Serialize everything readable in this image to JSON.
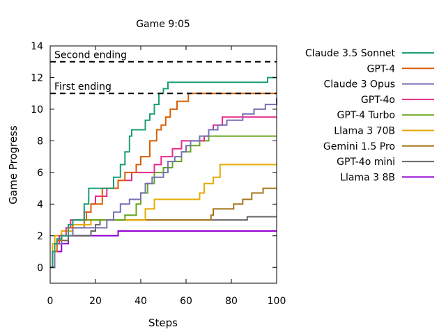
{
  "chart_data": {
    "type": "line",
    "title": "Game 9:05",
    "xlabel": "Steps",
    "ylabel": "Game Progress",
    "xlim": [
      0,
      100
    ],
    "ylim": [
      -1,
      14
    ],
    "xticks": [
      0,
      20,
      40,
      60,
      80,
      100
    ],
    "yticks": [
      0,
      2,
      4,
      6,
      8,
      10,
      12,
      14
    ],
    "legend_position": "outside-right",
    "reference_lines": [
      {
        "label": "Second ending",
        "y": 13
      },
      {
        "label": "First ending",
        "y": 11
      }
    ],
    "series": [
      {
        "name": "Claude 3.5 Sonnet",
        "color": "#1a9e77",
        "points": [
          [
            0,
            0
          ],
          [
            1,
            1
          ],
          [
            2,
            1.5
          ],
          [
            3,
            1.8
          ],
          [
            5,
            2
          ],
          [
            8,
            2.7
          ],
          [
            10,
            3
          ],
          [
            13,
            3
          ],
          [
            15,
            4
          ],
          [
            17,
            5
          ],
          [
            27,
            5
          ],
          [
            28,
            5.7
          ],
          [
            31,
            6.5
          ],
          [
            33,
            7.3
          ],
          [
            35,
            8.3
          ],
          [
            36,
            8.7
          ],
          [
            40,
            8.7
          ],
          [
            42,
            9.3
          ],
          [
            44,
            9.7
          ],
          [
            46,
            10.3
          ],
          [
            48,
            11
          ],
          [
            50,
            11.3
          ],
          [
            52,
            11.7
          ],
          [
            95,
            11.7
          ],
          [
            96,
            12
          ],
          [
            100,
            12
          ]
        ]
      },
      {
        "name": "GPT-4",
        "color": "#d95f02",
        "points": [
          [
            0,
            0
          ],
          [
            1,
            1
          ],
          [
            3,
            1.7
          ],
          [
            5,
            2
          ],
          [
            8,
            2.5
          ],
          [
            10,
            3
          ],
          [
            15,
            3
          ],
          [
            16,
            3.5
          ],
          [
            18,
            4
          ],
          [
            20,
            4
          ],
          [
            23,
            5
          ],
          [
            30,
            5.5
          ],
          [
            33,
            6
          ],
          [
            38,
            6.5
          ],
          [
            40,
            7
          ],
          [
            43,
            7
          ],
          [
            44,
            8
          ],
          [
            47,
            8.7
          ],
          [
            49,
            9
          ],
          [
            51,
            9.5
          ],
          [
            53,
            10
          ],
          [
            56,
            10.5
          ],
          [
            60,
            10.5
          ],
          [
            61,
            11
          ],
          [
            100,
            11
          ]
        ]
      },
      {
        "name": "Claude 3 Opus",
        "color": "#7570b3",
        "points": [
          [
            0,
            0
          ],
          [
            2,
            1.5
          ],
          [
            5,
            2
          ],
          [
            10,
            2.5
          ],
          [
            20,
            2.5
          ],
          [
            25,
            3
          ],
          [
            28,
            3.5
          ],
          [
            31,
            4
          ],
          [
            35,
            4.3
          ],
          [
            40,
            4.7
          ],
          [
            42,
            5.3
          ],
          [
            45,
            5.7
          ],
          [
            50,
            6
          ],
          [
            52,
            6.7
          ],
          [
            55,
            7
          ],
          [
            58,
            7.3
          ],
          [
            60,
            7.7
          ],
          [
            62,
            8
          ],
          [
            66,
            8.3
          ],
          [
            70,
            8.7
          ],
          [
            74,
            9
          ],
          [
            78,
            9.3
          ],
          [
            85,
            9.7
          ],
          [
            90,
            10
          ],
          [
            95,
            10.3
          ],
          [
            98,
            10.3
          ],
          [
            100,
            10.7
          ]
        ]
      },
      {
        "name": "GPT-4o",
        "color": "#e7298a",
        "points": [
          [
            0,
            0
          ],
          [
            2,
            1.5
          ],
          [
            4,
            2
          ],
          [
            7,
            2.5
          ],
          [
            9,
            3
          ],
          [
            14,
            3
          ],
          [
            15,
            3.5
          ],
          [
            18,
            4
          ],
          [
            20,
            4.5
          ],
          [
            25,
            5
          ],
          [
            30,
            5.5
          ],
          [
            36,
            6
          ],
          [
            44,
            6
          ],
          [
            46,
            6.5
          ],
          [
            49,
            7
          ],
          [
            54,
            7.5
          ],
          [
            58,
            8
          ],
          [
            68,
            8.3
          ],
          [
            70,
            8.7
          ],
          [
            72,
            9
          ],
          [
            76,
            9.5
          ],
          [
            100,
            9.5
          ]
        ]
      },
      {
        "name": "GPT-4 Turbo",
        "color": "#66a61e",
        "points": [
          [
            0,
            0
          ],
          [
            2,
            1.5
          ],
          [
            5,
            2
          ],
          [
            8,
            2.5
          ],
          [
            10,
            3
          ],
          [
            30,
            3
          ],
          [
            33,
            3.3
          ],
          [
            38,
            4
          ],
          [
            40,
            4.7
          ],
          [
            43,
            5.3
          ],
          [
            46,
            6
          ],
          [
            50,
            6.3
          ],
          [
            54,
            6.7
          ],
          [
            58,
            7.3
          ],
          [
            62,
            7.7
          ],
          [
            66,
            8
          ],
          [
            70,
            8.3
          ],
          [
            100,
            8.3
          ]
        ]
      },
      {
        "name": "Llama 3 70B",
        "color": "#e6ab02",
        "points": [
          [
            0,
            0
          ],
          [
            1,
            1.5
          ],
          [
            2,
            2
          ],
          [
            5,
            2.3
          ],
          [
            10,
            2.7
          ],
          [
            18,
            3
          ],
          [
            40,
            3
          ],
          [
            42,
            3.7
          ],
          [
            46,
            4.3
          ],
          [
            65,
            4.3
          ],
          [
            66,
            4.7
          ],
          [
            68,
            5.3
          ],
          [
            72,
            5.7
          ],
          [
            75,
            6.5
          ],
          [
            100,
            6.5
          ]
        ]
      },
      {
        "name": "Gemini 1.5 Pro",
        "color": "#a6761d",
        "points": [
          [
            0,
            0
          ],
          [
            2,
            1.5
          ],
          [
            4,
            2
          ],
          [
            10,
            2.5
          ],
          [
            15,
            3
          ],
          [
            70,
            3
          ],
          [
            71,
            3.3
          ],
          [
            72,
            3.7
          ],
          [
            80,
            3.7
          ],
          [
            81,
            4
          ],
          [
            85,
            4.3
          ],
          [
            89,
            4.7
          ],
          [
            94,
            5
          ],
          [
            100,
            5
          ]
        ]
      },
      {
        "name": "GPT-4o mini",
        "color": "#666666",
        "points": [
          [
            0,
            0
          ],
          [
            2,
            1.5
          ],
          [
            4,
            1.7
          ],
          [
            8,
            2
          ],
          [
            18,
            2.3
          ],
          [
            20,
            2.7
          ],
          [
            22,
            3
          ],
          [
            85,
            3
          ],
          [
            87,
            3.2
          ],
          [
            100,
            3.2
          ]
        ]
      },
      {
        "name": "Llama 3 8B",
        "color": "#9400d3",
        "points": [
          [
            0,
            0
          ],
          [
            2,
            1
          ],
          [
            5,
            1.5
          ],
          [
            8,
            2
          ],
          [
            12,
            2
          ],
          [
            29,
            2
          ],
          [
            30,
            2.3
          ],
          [
            100,
            2.3
          ]
        ]
      }
    ]
  }
}
